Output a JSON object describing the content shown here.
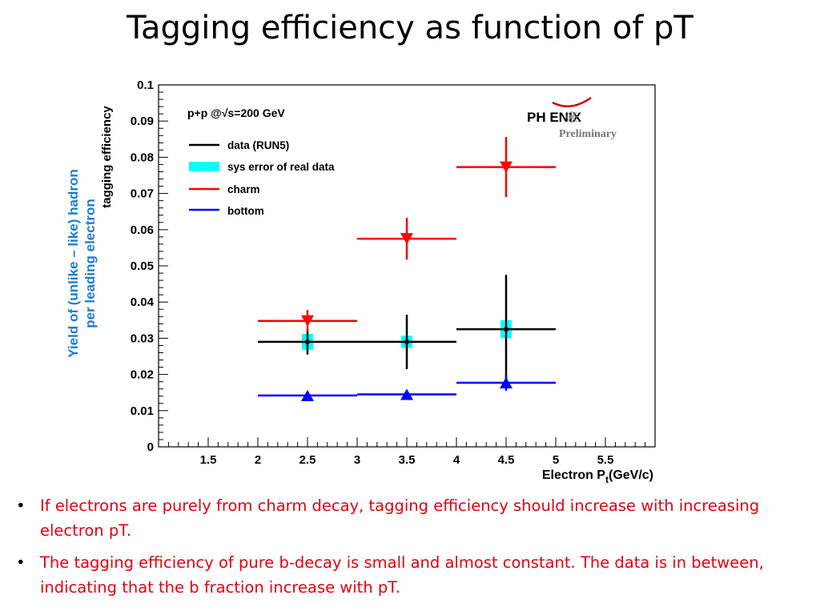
{
  "title": "Tagging efficiency as function of pT",
  "outer_ylabel": [
    "Yield of (unlike – like) hadron",
    "per leading electron"
  ],
  "bullets": [
    "If electrons are purely from charm decay, tagging efficiency should increase with increasing electron pT.",
    "The tagging efficiency of pure b-decay is small and almost constant. The data is in between, indicating that the b fraction increase with pT."
  ],
  "chart_data": {
    "type": "scatter",
    "ylabel": "tagging efficiency",
    "xlabel": "Electron P",
    "xlabel_sub": "t",
    "xlabel_unit": "(GeV/c)",
    "xlim": [
      1.0,
      6.0
    ],
    "ylim": [
      0,
      0.1
    ],
    "x_ticks": [
      "1.5",
      "2",
      "2.5",
      "3",
      "3.5",
      "4",
      "4.5",
      "5",
      "5.5"
    ],
    "y_ticks": [
      "0",
      "0.01",
      "0.02",
      "0.03",
      "0.04",
      "0.05",
      "0.06",
      "0.07",
      "0.08",
      "0.09",
      "0.1"
    ],
    "annotation": "p+p @√s=200 GeV",
    "logo": "PH ENIX",
    "logo_sub": "Preliminary",
    "legend_position": "top-left",
    "series": [
      {
        "name": "data (RUN5)",
        "color": "#000000",
        "marker": "circle",
        "x": [
          2.5,
          3.5,
          4.5
        ],
        "x_low": [
          2,
          3,
          4
        ],
        "x_high": [
          3,
          4,
          5
        ],
        "y": [
          0.029,
          0.029,
          0.0325
        ],
        "y_err": [
          0.0035,
          0.0075,
          0.015
        ]
      },
      {
        "name": "sys error of real data",
        "color": "#00ffff",
        "marker": "box",
        "x": [
          2.5,
          3.5,
          4.5
        ],
        "y": [
          0.029,
          0.029,
          0.0325
        ],
        "y_sys": [
          0.0022,
          0.0017,
          0.0025
        ]
      },
      {
        "name": "charm",
        "color": "#ff0000",
        "marker": "triangle-down",
        "x": [
          2.5,
          3.5,
          4.5
        ],
        "x_low": [
          2,
          3,
          4
        ],
        "x_high": [
          3,
          4,
          5
        ],
        "y": [
          0.0348,
          0.0575,
          0.0773
        ],
        "y_err": [
          0.003,
          0.0058,
          0.0083
        ]
      },
      {
        "name": "bottom",
        "color": "#0000ff",
        "marker": "triangle-up",
        "x": [
          2.5,
          3.5,
          4.5
        ],
        "x_low": [
          2,
          3,
          4
        ],
        "x_high": [
          3,
          4,
          5
        ],
        "y": [
          0.0142,
          0.0145,
          0.0177
        ],
        "y_err": [
          0.0008,
          0.0008,
          0.0022
        ]
      }
    ]
  }
}
